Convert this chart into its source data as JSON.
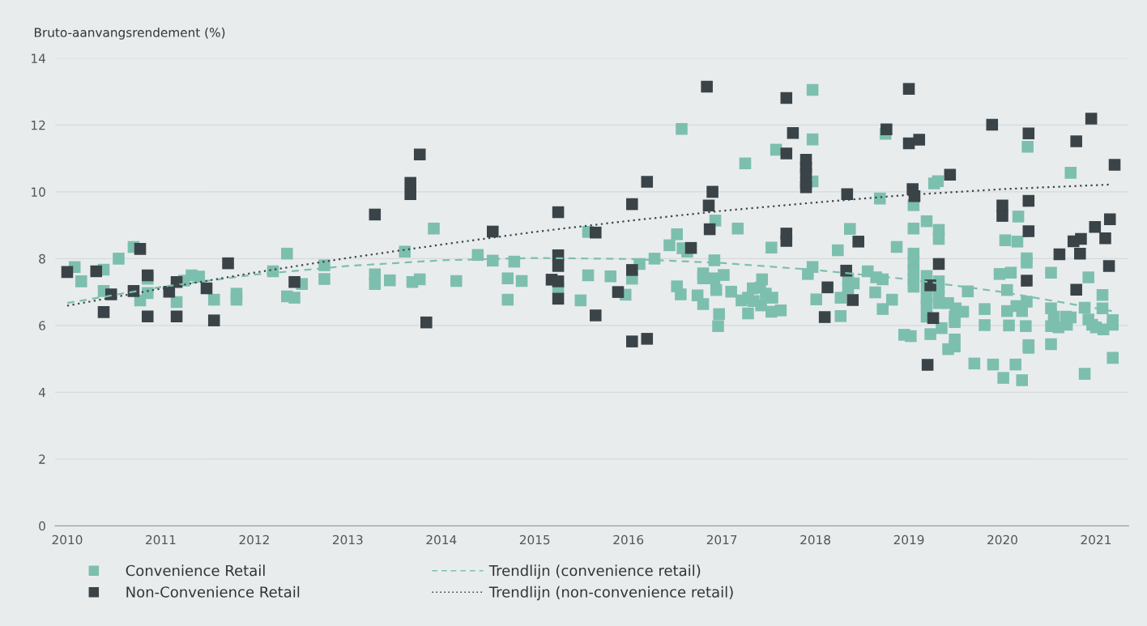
{
  "chart_data": {
    "type": "scatter",
    "ylabel": "Bruto-aanvangsrendement (%)",
    "xlim": [
      2009.87,
      2021.35
    ],
    "ylim": [
      0,
      14
    ],
    "xticks": [
      2010,
      2011,
      2012,
      2013,
      2014,
      2015,
      2016,
      2017,
      2018,
      2019,
      2020,
      2021
    ],
    "yticks": [
      0,
      2,
      4,
      6,
      8,
      10,
      12,
      14
    ],
    "grid": "y",
    "legend": "bottom",
    "series": [
      {
        "name": "Convenience Retail",
        "marker": "square",
        "color": "#7dbfae",
        "x": [
          2010.08,
          2010.15,
          2010.39,
          2010.39,
          2010.55,
          2010.71,
          2010.86,
          2010.86,
          2010.78,
          2011.17,
          2011.25,
          2011.33,
          2011.41,
          2011.57,
          2011.81,
          2011.81,
          2012.2,
          2012.35,
          2012.35,
          2012.43,
          2012.51,
          2012.75,
          2012.75,
          2013.29,
          2013.29,
          2013.45,
          2013.61,
          2013.69,
          2013.77,
          2013.92,
          2014.16,
          2014.39,
          2014.55,
          2014.71,
          2014.71,
          2014.78,
          2014.86,
          2015.25,
          2015.49,
          2015.57,
          2015.57,
          2015.81,
          2015.97,
          2016.04,
          2016.12,
          2016.28,
          2016.44,
          2016.52,
          2016.57,
          2016.58,
          2016.63,
          2016.52,
          2016.56,
          2016.74,
          2016.8,
          2016.8,
          2016.8,
          2016.93,
          2016.92,
          2016.92,
          2017.02,
          2016.94,
          2016.97,
          2016.96,
          2017.1,
          2017.17,
          2017.25,
          2017.21,
          2017.28,
          2017.28,
          2017.33,
          2017.41,
          2017.43,
          2017.47,
          2017.34,
          2017.42,
          2017.54,
          2017.53,
          2017.53,
          2017.58,
          2017.63,
          2017.97,
          2017.97,
          2017.97,
          2018.24,
          2018.37,
          2018.69,
          2018.75,
          2019.05,
          2019.05,
          2019.05,
          2019.05,
          2019.05,
          2019.05,
          2019.05,
          2019.19,
          2019.27,
          2019.31,
          2019.32,
          2019.32,
          2018.87,
          2017.97,
          2017.92,
          2018.01,
          2018.27,
          2018.27,
          2018.35,
          2018.41,
          2018.35,
          2018.56,
          2018.65,
          2018.72,
          2018.64,
          2018.82,
          2018.72,
          2018.95,
          2019.02,
          2019.19,
          2019.19,
          2019.19,
          2019.19,
          2019.19,
          2019.23,
          2019.32,
          2019.32,
          2019.32,
          2019.32,
          2019.35,
          2019.42,
          2019.5,
          2019.49,
          2019.49,
          2019.58,
          2019.49,
          2019.49,
          2019.42,
          2019.63,
          2019.7,
          2019.81,
          2019.81,
          2019.9,
          2019.97,
          2020.01,
          2020.03,
          2020.05,
          2020.05,
          2020.07,
          2020.09,
          2020.14,
          2020.15,
          2020.16,
          2020.17,
          2020.21,
          2020.21,
          2020.25,
          2020.26,
          2020.26,
          2020.26,
          2020.27,
          2020.28,
          2020.28,
          2020.52,
          2020.52,
          2020.55,
          2020.52,
          2020.6,
          2020.52,
          2020.68,
          2020.73,
          2020.69,
          2020.73,
          2020.88,
          2020.92,
          2020.88,
          2020.92,
          2020.96,
          2021.0,
          2021.08,
          2021.07,
          2021.07,
          2021.18,
          2021.18,
          2021.18
        ],
        "values": [
          7.75,
          7.32,
          7.67,
          7.03,
          8.0,
          8.35,
          7.4,
          6.97,
          6.75,
          6.7,
          7.34,
          7.5,
          7.46,
          6.77,
          6.95,
          6.77,
          7.62,
          8.15,
          6.87,
          6.83,
          7.24,
          7.8,
          7.39,
          7.53,
          7.24,
          7.35,
          8.21,
          7.3,
          7.38,
          8.9,
          7.33,
          8.11,
          7.94,
          7.41,
          6.77,
          7.91,
          7.33,
          7.11,
          6.75,
          8.8,
          7.5,
          7.47,
          6.92,
          7.4,
          7.84,
          8.0,
          8.4,
          8.73,
          11.88,
          8.31,
          8.21,
          7.17,
          6.93,
          6.9,
          7.56,
          7.41,
          6.64,
          9.14,
          7.95,
          7.41,
          7.51,
          7.06,
          6.34,
          5.98,
          7.01,
          8.9,
          10.85,
          6.75,
          6.83,
          6.36,
          7.11,
          7.13,
          7.38,
          6.95,
          6.73,
          6.6,
          6.83,
          6.41,
          8.33,
          11.26,
          6.45,
          13.05,
          11.57,
          10.31,
          8.25,
          8.89,
          9.8,
          11.74,
          9.6,
          8.9,
          8.15,
          7.88,
          7.64,
          7.4,
          7.16,
          9.12,
          10.25,
          10.32,
          8.86,
          8.59,
          8.35,
          7.75,
          7.54,
          6.78,
          6.83,
          6.28,
          7.4,
          7.26,
          7.11,
          7.62,
          7.44,
          7.38,
          6.99,
          6.77,
          6.49,
          5.72,
          5.68,
          7.48,
          7.16,
          6.83,
          6.59,
          6.26,
          5.74,
          7.32,
          7.12,
          6.88,
          6.67,
          5.92,
          6.67,
          6.51,
          6.26,
          6.1,
          6.41,
          5.58,
          5.37,
          5.29,
          7.02,
          4.86,
          6.49,
          6.01,
          4.83,
          7.54,
          4.43,
          8.55,
          7.06,
          6.43,
          6.0,
          7.58,
          4.83,
          6.58,
          8.51,
          9.26,
          6.43,
          4.36,
          5.98,
          8.01,
          7.88,
          6.71,
          11.35,
          5.41,
          5.33,
          7.58,
          6.51,
          6.26,
          5.98,
          5.94,
          5.44,
          6.26,
          6.24,
          6.02,
          10.57,
          6.53,
          7.44,
          4.55,
          6.18,
          6.02,
          5.94,
          5.88,
          6.91,
          6.51,
          6.16,
          6.02,
          5.03
        ]
      },
      {
        "name": "Non-Convenience Retail",
        "marker": "square",
        "color": "#3a4448",
        "x": [
          2010.0,
          2010.31,
          2010.39,
          2010.47,
          2010.71,
          2010.78,
          2010.86,
          2010.86,
          2011.09,
          2011.17,
          2011.17,
          2011.49,
          2011.57,
          2011.72,
          2012.43,
          2013.29,
          2013.67,
          2013.67,
          2013.77,
          2013.84,
          2014.55,
          2015.25,
          2015.25,
          2015.25,
          2015.18,
          2015.25,
          2015.25,
          2015.65,
          2015.65,
          2015.89,
          2016.04,
          2016.04,
          2016.04,
          2016.2,
          2016.2,
          2016.67,
          2016.84,
          2016.9,
          2016.86,
          2016.87,
          2017.69,
          2017.76,
          2017.69,
          2017.69,
          2017.69,
          2017.9,
          2017.9,
          2017.9,
          2017.9,
          2017.9,
          2018.34,
          2018.46,
          2018.33,
          2018.13,
          2018.4,
          2018.1,
          2018.76,
          2019.0,
          2019.0,
          2019.11,
          2019.04,
          2019.06,
          2019.44,
          2019.32,
          2019.23,
          2019.26,
          2019.2,
          2019.89,
          2020.0,
          2020.0,
          2020.28,
          2020.28,
          2020.28,
          2020.26,
          2020.79,
          2020.95,
          2021.2,
          2021.15,
          2020.99,
          2021.1,
          2020.76,
          2020.84,
          2020.83,
          2020.61,
          2021.14,
          2020.79
        ],
        "values": [
          7.6,
          7.62,
          6.4,
          6.93,
          7.03,
          8.29,
          7.5,
          6.27,
          7.01,
          7.3,
          6.27,
          7.11,
          6.15,
          7.86,
          7.3,
          9.32,
          10.27,
          9.93,
          11.12,
          6.09,
          8.81,
          9.39,
          8.1,
          7.78,
          7.37,
          7.32,
          6.8,
          8.78,
          6.3,
          7.0,
          9.63,
          7.66,
          5.52,
          10.3,
          5.6,
          8.32,
          13.15,
          10.0,
          9.59,
          8.88,
          12.81,
          11.76,
          11.15,
          8.75,
          8.53,
          10.96,
          10.72,
          10.56,
          10.26,
          10.14,
          9.93,
          8.51,
          7.64,
          7.14,
          6.76,
          6.25,
          11.87,
          13.08,
          11.45,
          11.56,
          10.08,
          9.87,
          10.51,
          7.84,
          7.2,
          6.22,
          4.82,
          12.01,
          9.59,
          9.28,
          11.75,
          9.73,
          8.82,
          7.34,
          11.51,
          12.19,
          10.81,
          9.18,
          8.95,
          8.61,
          8.52,
          8.59,
          8.15,
          8.13,
          7.78,
          7.07
        ]
      },
      {
        "name": "Trendlijn (convenience retail)",
        "type": "line",
        "line_style": "dashed",
        "color": "#7dbfae",
        "x": [
          2010,
          2011,
          2012,
          2013,
          2014,
          2015,
          2016,
          2017,
          2018,
          2019,
          2020,
          2021.17
        ],
        "values": [
          6.67,
          7.15,
          7.52,
          7.78,
          7.95,
          8.02,
          7.99,
          7.87,
          7.66,
          7.38,
          7.0,
          6.43
        ]
      },
      {
        "name": "Trendlijn (non-convenience retail)",
        "type": "line",
        "line_style": "dotted",
        "color": "#3a4448",
        "x": [
          2010,
          2011,
          2012,
          2013,
          2014,
          2015,
          2016,
          2017,
          2018,
          2019,
          2020,
          2021.17
        ],
        "values": [
          6.59,
          7.1,
          7.58,
          8.02,
          8.42,
          8.8,
          9.13,
          9.43,
          9.68,
          9.91,
          10.08,
          10.22
        ]
      }
    ]
  }
}
